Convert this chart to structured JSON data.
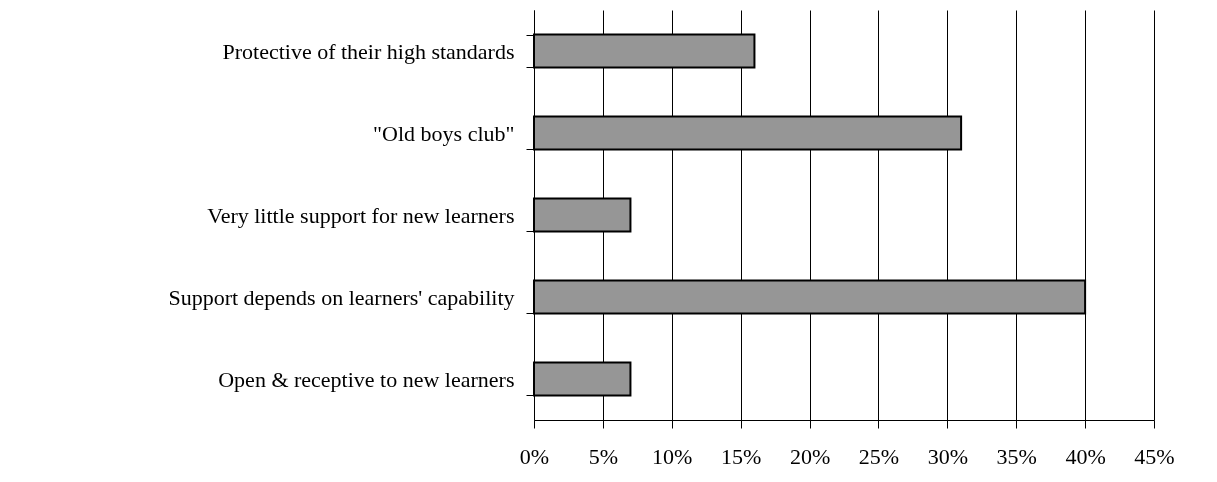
{
  "chart_data": {
    "type": "bar",
    "orientation": "horizontal",
    "categories": [
      "Protective of their high standards",
      "\"Old boys club\"",
      "Very little support for new learners",
      "Support depends on learners' capability",
      "Open & receptive to new learners"
    ],
    "values": [
      16,
      31,
      7,
      40,
      7
    ],
    "color": "#969696",
    "xlim": [
      0,
      45
    ],
    "xticks": [
      {
        "value": 0,
        "label": "0%"
      },
      {
        "value": 5,
        "label": "5%"
      },
      {
        "value": 10,
        "label": "10%"
      },
      {
        "value": 15,
        "label": "15%"
      },
      {
        "value": 20,
        "label": "20%"
      },
      {
        "value": 25,
        "label": "25%"
      },
      {
        "value": 30,
        "label": "30%"
      },
      {
        "value": 35,
        "label": "35%"
      },
      {
        "value": 40,
        "label": "40%"
      },
      {
        "value": 45,
        "label": "45%"
      }
    ],
    "grid": "x"
  }
}
